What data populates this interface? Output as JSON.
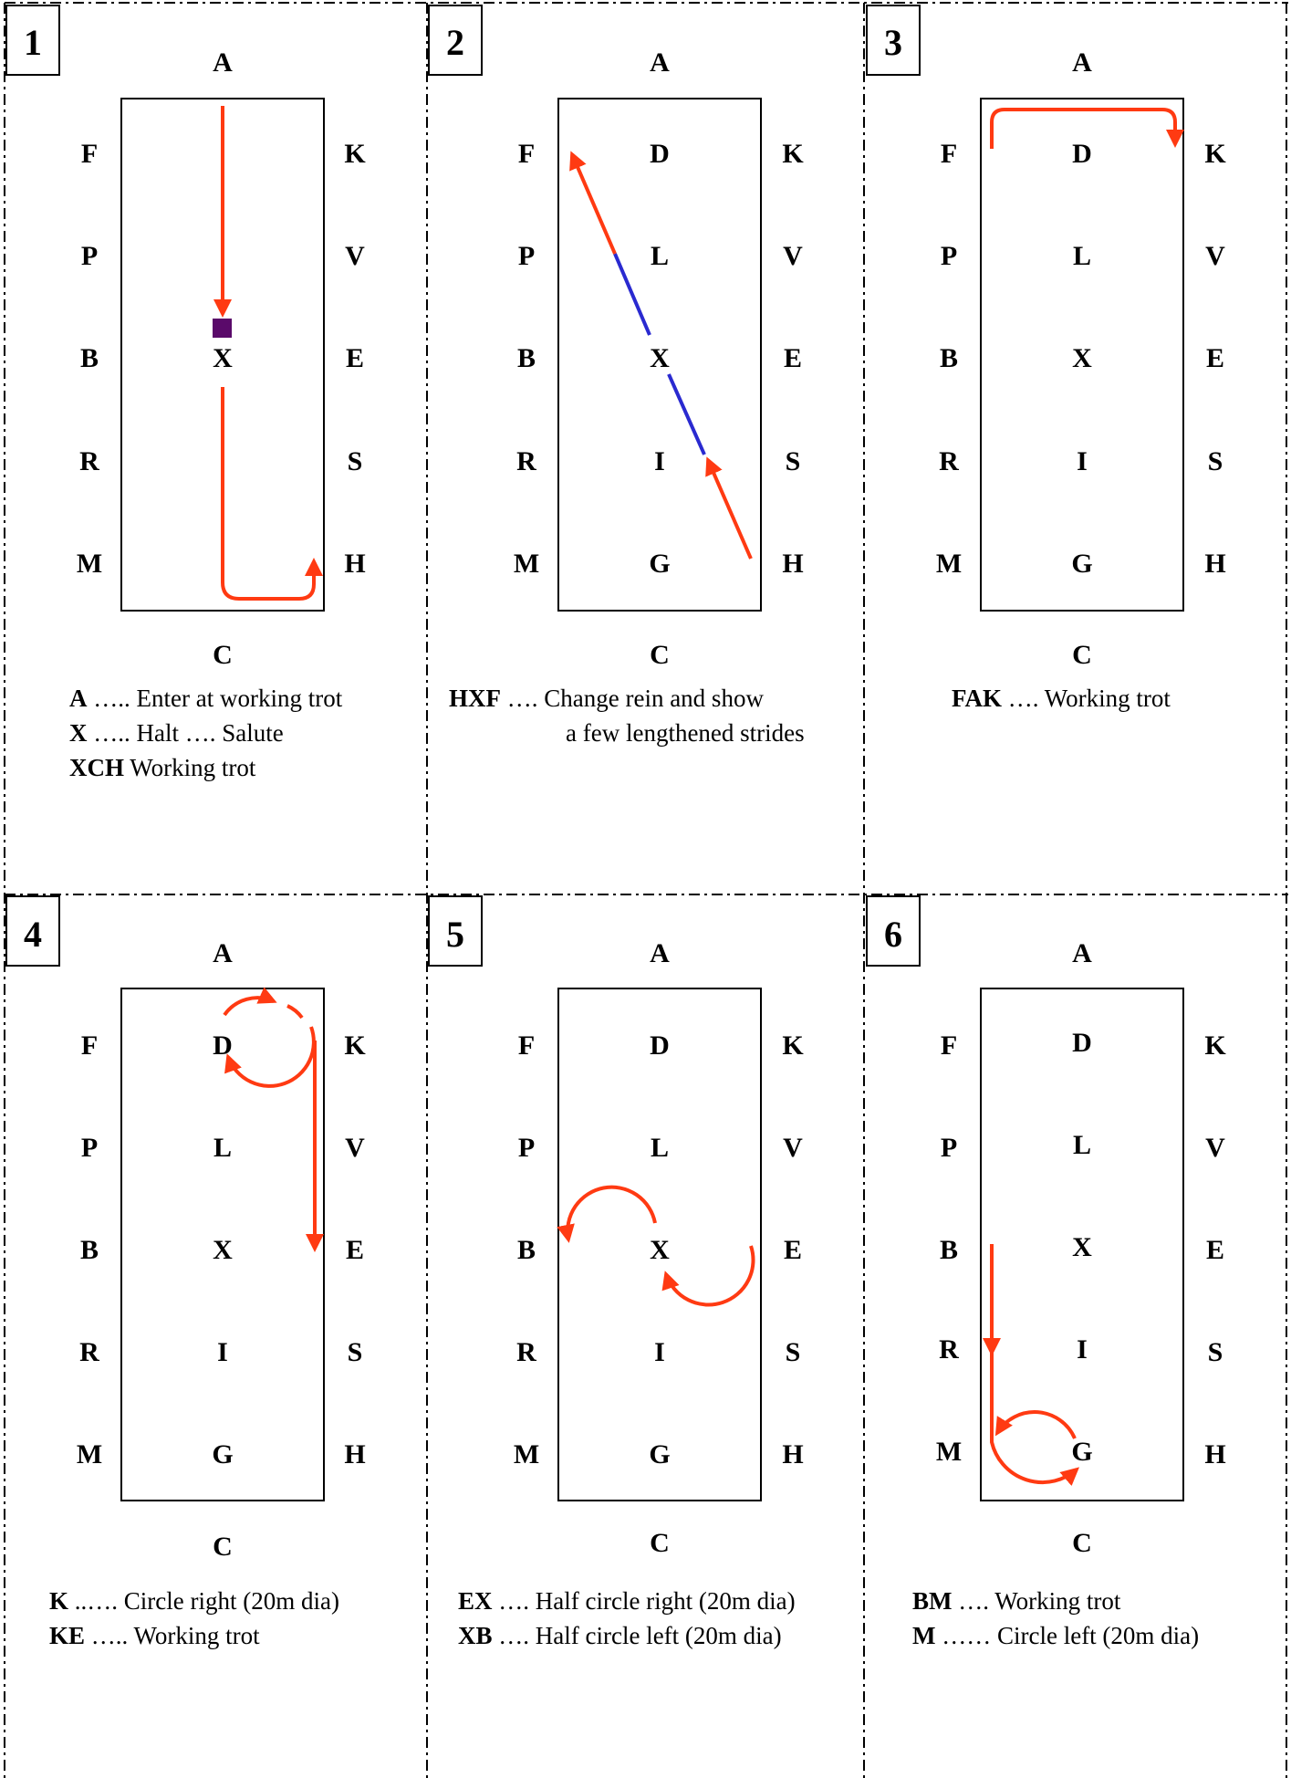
{
  "colors": {
    "path": "#ff3a12",
    "lengthen": "#2a2ad0",
    "halt": "#5a0a6a",
    "ink": "#000000"
  },
  "panels": [
    {
      "number": "1",
      "letters": {
        "top": "A",
        "bottom": "C",
        "left": [
          "F",
          "P",
          "B",
          "R",
          "M"
        ],
        "center": [
          "",
          "",
          "X",
          "",
          ""
        ],
        "right": [
          "K",
          "V",
          "E",
          "S",
          "H"
        ]
      },
      "description": [
        {
          "code": "A",
          "text": " ….. Enter at working trot"
        },
        {
          "code": "X",
          "text": " ….. Halt …. Salute"
        },
        {
          "code": "XCH",
          "text": "  Working trot"
        }
      ]
    },
    {
      "number": "2",
      "letters": {
        "top": "A",
        "bottom": "C",
        "left": [
          "F",
          "P",
          "B",
          "R",
          "M"
        ],
        "center": [
          "D",
          "L",
          "X",
          "I",
          "G"
        ],
        "right": [
          "K",
          "V",
          "E",
          "S",
          "H"
        ]
      },
      "description": [
        {
          "code": "HXF",
          "text": " …. Change rein and show"
        },
        {
          "code": "",
          "text": "a few lengthened strides"
        }
      ]
    },
    {
      "number": "3",
      "letters": {
        "top": "A",
        "bottom": "C",
        "left": [
          "F",
          "P",
          "B",
          "R",
          "M"
        ],
        "center": [
          "D",
          "L",
          "X",
          "I",
          "G"
        ],
        "right": [
          "K",
          "V",
          "E",
          "S",
          "H"
        ]
      },
      "description": [
        {
          "code": "FAK",
          "text": " …. Working trot"
        }
      ]
    },
    {
      "number": "4",
      "letters": {
        "top": "A",
        "bottom": "C",
        "left": [
          "F",
          "P",
          "B",
          "R",
          "M"
        ],
        "center": [
          "D",
          "L",
          "X",
          "I",
          "G"
        ],
        "right": [
          "K",
          "V",
          "E",
          "S",
          "H"
        ]
      },
      "description": [
        {
          "code": "K",
          "text": " ..…. Circle right (20m dia)"
        },
        {
          "code": "KE",
          "text": " ….. Working trot"
        }
      ]
    },
    {
      "number": "5",
      "letters": {
        "top": "A",
        "bottom": "C",
        "left": [
          "F",
          "P",
          "B",
          "R",
          "M"
        ],
        "center": [
          "D",
          "L",
          "X",
          "I",
          "G"
        ],
        "right": [
          "K",
          "V",
          "E",
          "S",
          "H"
        ]
      },
      "description": [
        {
          "code": "EX",
          "text": " …. Half circle right  (20m dia)"
        },
        {
          "code": "XB",
          "text": " …. Half circle left  (20m dia)"
        }
      ]
    },
    {
      "number": "6",
      "letters": {
        "top": "A",
        "bottom": "C",
        "left": [
          "F",
          "P",
          "B",
          "R",
          "M"
        ],
        "center": [
          "D",
          "L",
          "X",
          "I",
          "G"
        ],
        "right": [
          "K",
          "V",
          "E",
          "S",
          "H"
        ]
      },
      "description": [
        {
          "code": "BM",
          "text": " …. Working trot"
        },
        {
          "code": "M",
          "text": " …… Circle left (20m dia)"
        }
      ]
    }
  ]
}
